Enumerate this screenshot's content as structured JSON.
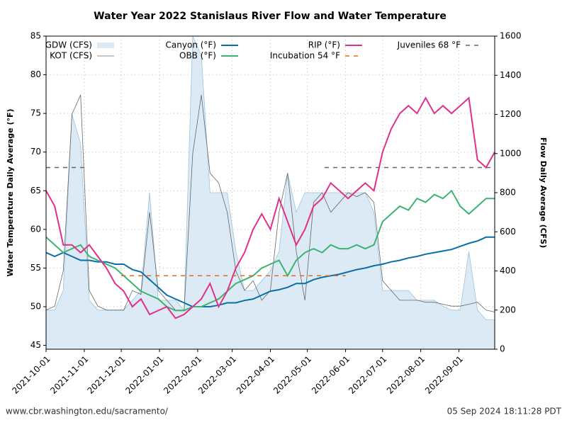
{
  "chart_data": {
    "type": "line",
    "title": "Water Year 2022 Stanislaus River Flow and Water Temperature",
    "ylabel": "Water Temperature Daily Average (°F)",
    "y2label": "Flow Daily Average (CFS)",
    "x": [
      "2021-10-01",
      "2021-10-08",
      "2021-10-15",
      "2021-10-22",
      "2021-10-29",
      "2021-11-05",
      "2021-11-12",
      "2021-11-19",
      "2021-11-26",
      "2021-12-03",
      "2021-12-10",
      "2021-12-17",
      "2021-12-24",
      "2021-12-31",
      "2022-01-07",
      "2022-01-14",
      "2022-01-21",
      "2022-01-28",
      "2022-02-04",
      "2022-02-11",
      "2022-02-18",
      "2022-02-25",
      "2022-03-04",
      "2022-03-11",
      "2022-03-18",
      "2022-03-25",
      "2022-04-01",
      "2022-04-08",
      "2022-04-15",
      "2022-04-22",
      "2022-04-29",
      "2022-05-06",
      "2022-05-13",
      "2022-05-20",
      "2022-05-27",
      "2022-06-03",
      "2022-06-10",
      "2022-06-17",
      "2022-06-24",
      "2022-07-01",
      "2022-07-08",
      "2022-07-15",
      "2022-07-22",
      "2022-07-29",
      "2022-08-05",
      "2022-08-12",
      "2022-08-19",
      "2022-08-26",
      "2022-09-02",
      "2022-09-09",
      "2022-09-16",
      "2022-09-23",
      "2022-09-30"
    ],
    "xlim": [
      "2021-10-01",
      "2022-09-30"
    ],
    "xticks": [
      "2021-10-01",
      "2021-11-01",
      "2021-12-01",
      "2022-01-01",
      "2022-02-01",
      "2022-03-01",
      "2022-04-01",
      "2022-05-01",
      "2022-06-01",
      "2022-07-01",
      "2022-08-01",
      "2022-09-01"
    ],
    "ylim": [
      44.5,
      85
    ],
    "yticks": [
      45,
      50,
      55,
      60,
      65,
      70,
      75,
      80,
      85
    ],
    "y2lim": [
      0,
      1600
    ],
    "y2ticks": [
      0,
      200,
      400,
      600,
      800,
      1000,
      1200,
      1400,
      1600
    ],
    "grid": true,
    "series": [
      {
        "name": "GDW (CFS)",
        "color": "#9cc3dc",
        "style": "area",
        "axis": "y2",
        "values": [
          200,
          200,
          300,
          1200,
          1050,
          250,
          200,
          200,
          200,
          200,
          250,
          300,
          800,
          250,
          250,
          250,
          200,
          1600,
          1500,
          800,
          800,
          800,
          500,
          300,
          300,
          350,
          400,
          500,
          900,
          700,
          800,
          800,
          800,
          800,
          800,
          800,
          800,
          800,
          700,
          300,
          300,
          300,
          300,
          250,
          250,
          250,
          220,
          200,
          200,
          500,
          200,
          150,
          150
        ]
      },
      {
        "name": "KOT (CFS)",
        "color": "#666666",
        "style": "thin",
        "axis": "y2",
        "values": [
          200,
          220,
          400,
          1200,
          1300,
          300,
          220,
          200,
          200,
          200,
          300,
          280,
          700,
          300,
          250,
          200,
          200,
          1000,
          1300,
          900,
          850,
          700,
          400,
          300,
          350,
          250,
          300,
          700,
          900,
          500,
          250,
          750,
          800,
          700,
          750,
          800,
          780,
          800,
          750,
          350,
          300,
          250,
          250,
          250,
          240,
          240,
          230,
          220,
          220,
          230,
          240,
          200,
          190
        ]
      },
      {
        "name": "Canyon (°F)",
        "color": "#0a6fa8",
        "style": "solid",
        "values": [
          57,
          56.5,
          57,
          56.5,
          56,
          56,
          55.8,
          55.8,
          55.5,
          55.5,
          54.8,
          54.5,
          53.5,
          52.5,
          51.5,
          51,
          50.5,
          50,
          50,
          50,
          50.2,
          50.5,
          50.5,
          50.8,
          51,
          51.5,
          52,
          52.2,
          52.5,
          53,
          53,
          53.5,
          53.8,
          54,
          54.2,
          54.5,
          54.8,
          55,
          55.3,
          55.5,
          55.8,
          56,
          56.3,
          56.5,
          56.8,
          57,
          57.2,
          57.4,
          57.8,
          58.2,
          58.5,
          59,
          59
        ]
      },
      {
        "name": "OBB (°F)",
        "color": "#3cb371",
        "style": "solid",
        "values": [
          59,
          58,
          57,
          57.5,
          58,
          56.5,
          56,
          55.5,
          55,
          54,
          53,
          52,
          51.5,
          51,
          50,
          49.5,
          49.5,
          50,
          50,
          50.5,
          51,
          52,
          53,
          53.5,
          54,
          55,
          55.5,
          56,
          54,
          56,
          57,
          57.5,
          57,
          58,
          57.5,
          57.5,
          58,
          57.5,
          58,
          61,
          62,
          63,
          62.5,
          64,
          63.5,
          64.5,
          64,
          65,
          63,
          62,
          63,
          64,
          64
        ]
      },
      {
        "name": "RIP (°F)",
        "color": "#e0308a",
        "style": "solid",
        "values": [
          65,
          63,
          58,
          58,
          57,
          58,
          56.5,
          55,
          53,
          52,
          50,
          51,
          49,
          49.5,
          50,
          48.5,
          49,
          50,
          51,
          53,
          50,
          52,
          55,
          57,
          60,
          62,
          60,
          64,
          61,
          58,
          60,
          63,
          64,
          66,
          65,
          64,
          65,
          66,
          65,
          70,
          73,
          75,
          76,
          75,
          77,
          75,
          76,
          75,
          76,
          77,
          69,
          68,
          70
        ]
      },
      {
        "name": "Incubation 54 °F",
        "color": "#e06c1a",
        "style": "dashed",
        "x": [
          "2021-12-01",
          "2022-06-01"
        ],
        "values": [
          54,
          54
        ]
      },
      {
        "name": "Juveniles 68 °F",
        "color": "#666666",
        "style": "dashed",
        "x": [
          "2021-10-01",
          "2021-11-01",
          "2021-11-02",
          "2022-05-15",
          "2022-09-30"
        ],
        "values": [
          68,
          68,
          null,
          68,
          68
        ]
      }
    ],
    "footer_left": "www.cbr.washington.edu/sacramento/",
    "footer_right": "05 Sep 2024 18:11:28 PDT"
  }
}
